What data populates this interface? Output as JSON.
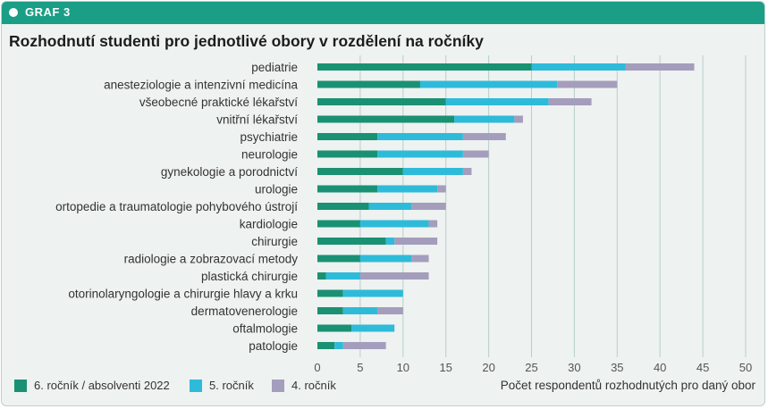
{
  "header": {
    "label": "GRAF 3"
  },
  "colors": {
    "header_bg": "#1a9e86",
    "series": [
      "#1a9173",
      "#2ebbd9",
      "#a59dbc"
    ]
  },
  "chart_data": {
    "type": "bar",
    "orientation": "horizontal",
    "stacked": true,
    "title": "Rozhodnutí studenti pro jednotlivé obory v rozdělení na ročníky",
    "xlabel": "Počet respondentů rozhodnutých pro daný obor",
    "ylabel": "",
    "xlim": [
      0,
      50
    ],
    "xticks": [
      0,
      5,
      10,
      15,
      20,
      25,
      30,
      35,
      40,
      45,
      50
    ],
    "grid": "vertical",
    "legend_position": "bottom",
    "categories": [
      "pediatrie",
      "anesteziologie a intenzivní medicína",
      "všeobecné praktické lékařství",
      "vnitřní lékařství",
      "psychiatrie",
      "neurologie",
      "gynekologie a porodnictví",
      "urologie",
      "ortopedie a traumatologie pohybového ústrojí",
      "kardiologie",
      "chirurgie",
      "radiologie a zobrazovací metody",
      "plastická chirurgie",
      "otorinolaryngologie a chirurgie hlavy a krku",
      "dermatovenerologie",
      "oftalmologie",
      "patologie"
    ],
    "series": [
      {
        "name": "6. ročník / absolventi 2022",
        "values": [
          25,
          12,
          15,
          16,
          7,
          7,
          10,
          7,
          6,
          5,
          8,
          5,
          1,
          3,
          3,
          4,
          2
        ]
      },
      {
        "name": "5. ročník",
        "values": [
          11,
          16,
          12,
          7,
          10,
          10,
          7,
          7,
          5,
          8,
          1,
          6,
          4,
          7,
          4,
          5,
          1
        ]
      },
      {
        "name": "4. ročník",
        "values": [
          8,
          7,
          5,
          1,
          5,
          3,
          1,
          1,
          4,
          1,
          5,
          2,
          8,
          0,
          3,
          0,
          5
        ]
      }
    ]
  }
}
